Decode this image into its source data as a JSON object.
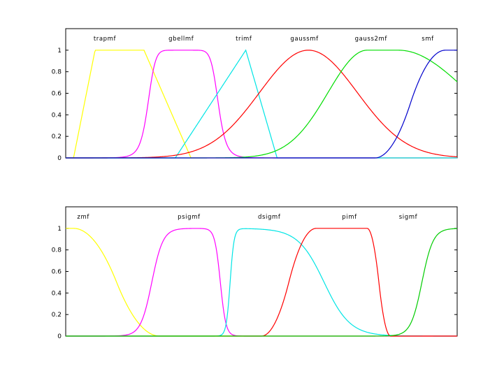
{
  "chart_data": [
    {
      "type": "line",
      "title": "",
      "xlabel": "",
      "ylabel": "",
      "xlim": [
        0,
        10
      ],
      "ylim": [
        0,
        1.2
      ],
      "yticks": [
        "0",
        "0.2",
        "0.4",
        "0.6",
        "0.8",
        "1"
      ],
      "grid": false,
      "series": [
        {
          "name": "trapmf",
          "color": "#ffff00",
          "mf": "trapmf",
          "params": [
            0.2,
            0.75,
            2.0,
            3.2
          ],
          "label_x": 1.0,
          "label_y": 1.11
        },
        {
          "name": "gbellmf",
          "color": "#ff00ff",
          "mf": "gbellmf",
          "params": [
            0.9,
            4.5,
            3.0
          ],
          "label_x": 2.95,
          "label_y": 1.11
        },
        {
          "name": "trimf",
          "color": "#00e5e5",
          "mf": "trimf",
          "params": [
            2.8,
            4.6,
            5.4
          ],
          "label_x": 4.55,
          "label_y": 1.11
        },
        {
          "name": "gaussmf",
          "color": "#ff0000",
          "mf": "gaussmf",
          "params": [
            1.25,
            6.2
          ],
          "label_x": 6.1,
          "label_y": 1.11
        },
        {
          "name": "gauss2mf",
          "color": "#00dd00",
          "mf": "gauss2mf",
          "params": [
            1.0,
            7.7,
            1.8,
            8.5
          ],
          "label_x": 7.8,
          "label_y": 1.11
        },
        {
          "name": "smf",
          "color": "#0000cc",
          "mf": "smf",
          "params": [
            7.9,
            9.7
          ],
          "label_x": 9.25,
          "label_y": 1.11
        }
      ]
    },
    {
      "type": "line",
      "title": "",
      "xlabel": "",
      "ylabel": "",
      "xlim": [
        0,
        10
      ],
      "ylim": [
        0,
        1.2
      ],
      "yticks": [
        "0",
        "0.2",
        "0.4",
        "0.6",
        "0.8",
        "1"
      ],
      "grid": false,
      "series": [
        {
          "name": "zmf",
          "color": "#ffff00",
          "mf": "zmf",
          "params": [
            0.2,
            2.4
          ],
          "label_x": 0.45,
          "label_y": 1.11
        },
        {
          "name": "psigmf",
          "color": "#ff00ff",
          "mf": "psigmf",
          "params": [
            7,
            2.2,
            -14,
            3.95
          ],
          "label_x": 3.15,
          "label_y": 1.11
        },
        {
          "name": "dsigmf",
          "color": "#00e5e5",
          "mf": "dsigmf",
          "params": [
            20,
            4.2,
            3,
            6.6
          ],
          "label_x": 5.2,
          "label_y": 1.11
        },
        {
          "name": "pimf",
          "color": "#ff0000",
          "mf": "pimf",
          "params": [
            5.0,
            6.4,
            7.7,
            8.3
          ],
          "label_x": 7.25,
          "label_y": 1.11
        },
        {
          "name": "sigmf",
          "color": "#00cc00",
          "mf": "sigmf",
          "params": [
            7,
            9.1
          ],
          "label_x": 8.75,
          "label_y": 1.11
        }
      ]
    }
  ]
}
